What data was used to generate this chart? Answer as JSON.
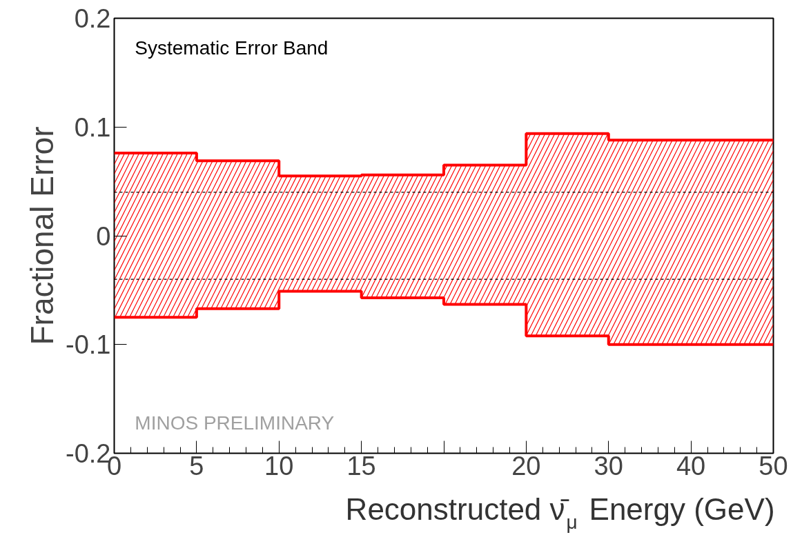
{
  "chart_data": {
    "type": "step",
    "xlabel": "Reconstructed ν̄$_{μ}$ Energy (GeV)",
    "ylabel": "Fractional Error",
    "annotations": [
      "Systematic Error Band",
      "MINOS PRELIMINARY"
    ],
    "categories": [
      "0",
      "5",
      "10",
      "15",
      null,
      "20",
      "30",
      "40",
      "50"
    ],
    "series": [
      {
        "color": "#ff0000",
        "values": [
          0.076,
          0.069,
          0.055,
          0.056,
          0.065,
          0.094,
          0.088,
          0.088,
          0.088
        ],
        "lower": [
          -0.075,
          -0.067,
          -0.051,
          -0.057,
          -0.063,
          -0.092,
          -0.1,
          -0.1,
          -0.1
        ],
        "upper": [
          0.076,
          0.069,
          0.055,
          0.056,
          0.065,
          0.094,
          0.088,
          0.088,
          0.088
        ]
      },
      {
        "color": "#ff0000",
        "values": [
          -0.075,
          -0.067,
          -0.051,
          -0.057,
          -0.063,
          -0.092,
          -0.1,
          -0.1,
          -0.1
        ]
      }
    ],
    "ylim": [
      -0.2,
      0.2
    ],
    "yticks": [
      -0.2,
      -0.1,
      {
        "value": 0,
        "label": "0"
      },
      0.1,
      0.2
    ],
    "ref_lines": [
      {
        "axis": "y",
        "value": 0.04,
        "line_style": "dashed",
        "color": "#000000"
      },
      {
        "axis": "y",
        "value": -0.04,
        "line_style": "dashed",
        "color": "#000000"
      }
    ],
    "grid": false,
    "marker": "none"
  }
}
